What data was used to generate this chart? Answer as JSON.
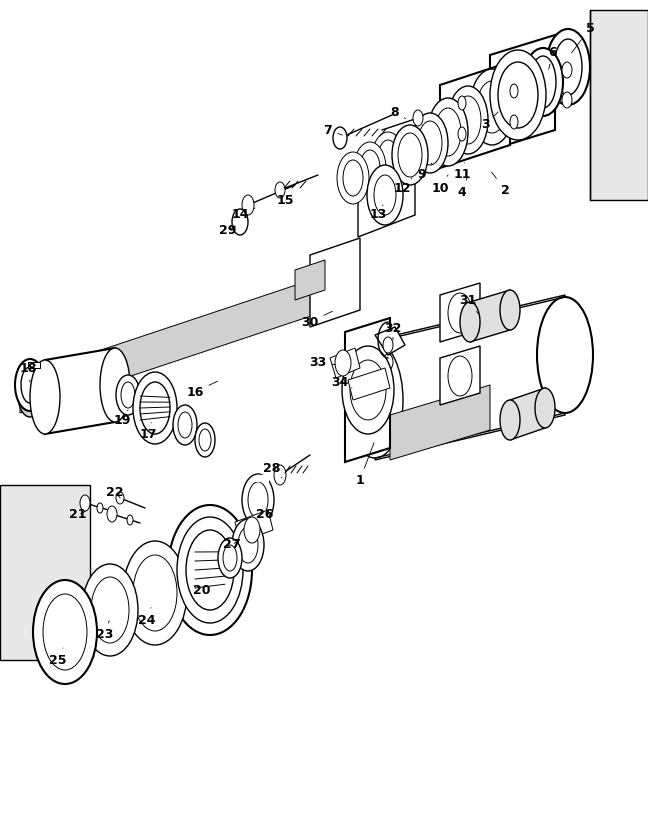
{
  "bg_color": "#ffffff",
  "lc": "#000000",
  "figsize": [
    6.48,
    8.14
  ],
  "dpi": 100,
  "title_fontsize": 9,
  "label_fontsize": 9,
  "lw_thin": 0.7,
  "lw_med": 1.0,
  "lw_thick": 1.5
}
